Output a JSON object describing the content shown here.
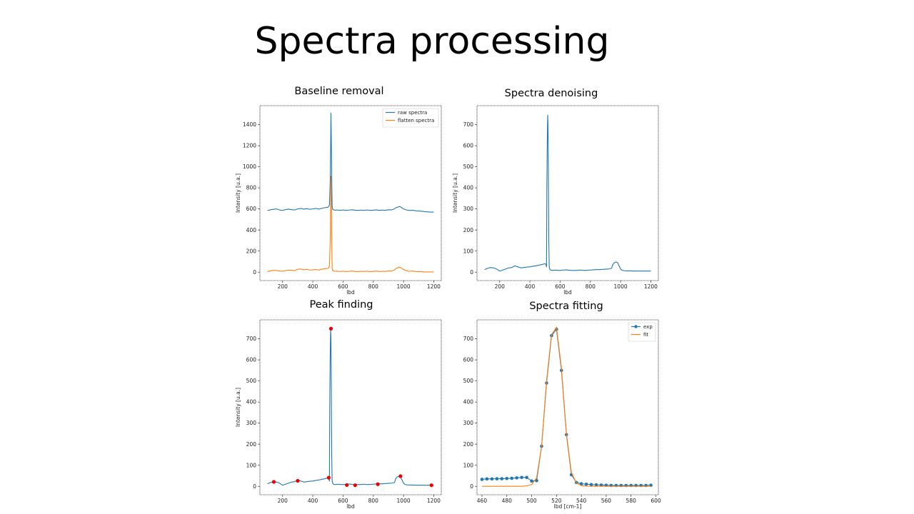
{
  "slide": {
    "title": "Spectra processing"
  },
  "colors": {
    "blue": "#1f77b4",
    "orange": "#ff7f0e",
    "red": "#ee0000",
    "axis": "#333333"
  },
  "chart_data": [
    {
      "id": "baseline",
      "type": "line",
      "title": "Baseline removal",
      "xlabel": "lbd",
      "ylabel": "Intensity [u.a.]",
      "xlim": [
        50,
        1250
      ],
      "ylim": [
        -80,
        1580
      ],
      "xticks": [
        200,
        400,
        600,
        800,
        1000,
        1200
      ],
      "yticks": [
        0,
        200,
        400,
        600,
        800,
        1000,
        1200,
        1400
      ],
      "legend": "top-right",
      "series": [
        {
          "name": "raw spectra",
          "color": "#1f77b4",
          "x": [
            100,
            120,
            140,
            160,
            180,
            200,
            220,
            240,
            260,
            280,
            300,
            320,
            340,
            360,
            380,
            400,
            420,
            440,
            460,
            480,
            500,
            505,
            510,
            515,
            518,
            520,
            522,
            525,
            528,
            532,
            536,
            540,
            550,
            560,
            580,
            600,
            620,
            640,
            660,
            680,
            700,
            720,
            740,
            760,
            780,
            800,
            820,
            840,
            860,
            880,
            900,
            920,
            940,
            950,
            960,
            970,
            980,
            990,
            1000,
            1010,
            1020,
            1040,
            1060,
            1080,
            1100,
            1120,
            1140,
            1160,
            1180,
            1200
          ],
          "y": [
            585,
            592,
            596,
            600,
            590,
            585,
            594,
            598,
            593,
            590,
            600,
            605,
            598,
            602,
            596,
            600,
            605,
            598,
            606,
            612,
            616,
            622,
            640,
            860,
            1200,
            1510,
            1300,
            900,
            620,
            595,
            593,
            590,
            588,
            590,
            587,
            590,
            586,
            589,
            592,
            588,
            586,
            589,
            587,
            590,
            585,
            588,
            591,
            586,
            589,
            587,
            592,
            590,
            600,
            612,
            615,
            622,
            620,
            610,
            600,
            595,
            590,
            585,
            588,
            582,
            580,
            578,
            574,
            572,
            570,
            570
          ]
        },
        {
          "name": "flatten spectra",
          "color": "#ff7f0e",
          "x": [
            100,
            120,
            140,
            160,
            180,
            200,
            220,
            240,
            260,
            280,
            300,
            320,
            340,
            360,
            380,
            400,
            420,
            440,
            460,
            480,
            500,
            505,
            510,
            515,
            518,
            520,
            522,
            525,
            528,
            532,
            536,
            540,
            550,
            560,
            580,
            600,
            620,
            640,
            660,
            680,
            700,
            720,
            740,
            760,
            780,
            800,
            820,
            840,
            860,
            880,
            900,
            920,
            940,
            950,
            960,
            970,
            980,
            990,
            1000,
            1010,
            1020,
            1040,
            1060,
            1080,
            1100,
            1120,
            1140,
            1160,
            1180,
            1200
          ],
          "y": [
            5,
            12,
            18,
            15,
            10,
            8,
            14,
            20,
            18,
            14,
            28,
            30,
            22,
            26,
            20,
            22,
            25,
            20,
            28,
            32,
            36,
            42,
            60,
            300,
            600,
            910,
            700,
            350,
            40,
            15,
            12,
            10,
            8,
            9,
            6,
            9,
            5,
            8,
            10,
            7,
            5,
            8,
            6,
            9,
            4,
            7,
            10,
            5,
            8,
            6,
            11,
            9,
            20,
            35,
            40,
            48,
            45,
            35,
            25,
            18,
            12,
            8,
            10,
            6,
            5,
            4,
            2,
            2,
            2,
            2
          ]
        }
      ]
    },
    {
      "id": "denoising",
      "type": "line",
      "title": "Spectra denoising",
      "xlabel": "lbd",
      "ylabel": "Intensity [u.a.]",
      "xlim": [
        50,
        1250
      ],
      "ylim": [
        -40,
        790
      ],
      "xticks": [
        200,
        400,
        600,
        800,
        1000,
        1200
      ],
      "yticks": [
        0,
        100,
        200,
        300,
        400,
        500,
        600,
        700
      ],
      "series": [
        {
          "name": "",
          "color": "#1f77b4",
          "x": [
            100,
            120,
            140,
            160,
            180,
            200,
            220,
            240,
            260,
            280,
            300,
            320,
            340,
            360,
            380,
            400,
            420,
            440,
            460,
            480,
            500,
            505,
            510,
            512,
            515,
            518,
            520,
            522,
            525,
            528,
            532,
            536,
            540,
            550,
            560,
            580,
            600,
            620,
            640,
            660,
            680,
            700,
            720,
            740,
            760,
            780,
            800,
            820,
            840,
            860,
            880,
            900,
            920,
            940,
            950,
            960,
            970,
            980,
            990,
            1000,
            1010,
            1020,
            1040,
            1060,
            1080,
            1100,
            1120,
            1140,
            1160,
            1180,
            1200
          ],
          "y": [
            12,
            18,
            22,
            20,
            15,
            5,
            10,
            15,
            20,
            22,
            30,
            25,
            20,
            22,
            24,
            25,
            28,
            30,
            33,
            36,
            40,
            38,
            25,
            380,
            620,
            745,
            700,
            500,
            150,
            25,
            14,
            10,
            9,
            8,
            10,
            9,
            8,
            10,
            11,
            9,
            8,
            8,
            9,
            10,
            8,
            9,
            10,
            11,
            12,
            12,
            13,
            14,
            15,
            18,
            38,
            45,
            48,
            45,
            30,
            15,
            9,
            7,
            6,
            6,
            5,
            5,
            5,
            5,
            5,
            5,
            5
          ]
        }
      ]
    },
    {
      "id": "peaks",
      "type": "line",
      "title": "Peak finding",
      "xlabel": "lbd",
      "ylabel": "Intensity [u.a.]",
      "xlim": [
        50,
        1250
      ],
      "ylim": [
        -40,
        790
      ],
      "xticks": [
        200,
        400,
        600,
        800,
        1000,
        1200
      ],
      "yticks": [
        0,
        100,
        200,
        300,
        400,
        500,
        600,
        700
      ],
      "series": [
        {
          "name": "",
          "color": "#1f77b4",
          "x": [
            100,
            120,
            140,
            160,
            180,
            200,
            220,
            240,
            260,
            280,
            300,
            320,
            340,
            360,
            380,
            400,
            420,
            440,
            460,
            480,
            500,
            505,
            510,
            512,
            515,
            518,
            520,
            522,
            525,
            528,
            532,
            536,
            540,
            550,
            560,
            580,
            600,
            620,
            640,
            660,
            680,
            700,
            720,
            740,
            760,
            780,
            800,
            820,
            840,
            860,
            880,
            900,
            920,
            940,
            950,
            960,
            970,
            980,
            990,
            1000,
            1010,
            1020,
            1040,
            1060,
            1080,
            1100,
            1120,
            1140,
            1160,
            1180,
            1200
          ],
          "y": [
            12,
            18,
            22,
            20,
            15,
            5,
            10,
            15,
            20,
            22,
            30,
            25,
            20,
            22,
            24,
            25,
            28,
            30,
            33,
            36,
            40,
            38,
            25,
            380,
            620,
            745,
            700,
            500,
            150,
            25,
            14,
            10,
            9,
            8,
            10,
            9,
            8,
            10,
            11,
            9,
            8,
            8,
            9,
            10,
            8,
            9,
            10,
            11,
            12,
            12,
            13,
            14,
            15,
            18,
            38,
            45,
            48,
            45,
            30,
            15,
            9,
            7,
            6,
            6,
            5,
            5,
            5,
            5,
            5,
            5,
            5
          ]
        }
      ],
      "peaks": {
        "color": "#ee0000",
        "x": [
          142,
          300,
          505,
          520,
          625,
          680,
          830,
          980,
          1185
        ],
        "y": [
          21,
          26,
          41,
          748,
          6,
          5,
          10,
          48,
          5
        ]
      }
    },
    {
      "id": "fitting",
      "type": "line",
      "title": "Spectra fitting",
      "xlabel": "lbd [cm-1]",
      "ylabel": "",
      "xlim": [
        456,
        602
      ],
      "ylim": [
        -40,
        790
      ],
      "xticks": [
        460,
        480,
        500,
        520,
        540,
        560,
        580,
        600
      ],
      "yticks": [
        0,
        100,
        200,
        300,
        400,
        500,
        600,
        700
      ],
      "legend": "top-right",
      "series": [
        {
          "name": "exp",
          "color": "#1f77b4",
          "markers": true,
          "x": [
            460,
            464,
            468,
            472,
            476,
            480,
            484,
            488,
            492,
            496,
            500,
            504,
            508,
            512,
            516,
            520,
            524,
            528,
            532,
            536,
            540,
            544,
            548,
            552,
            556,
            560,
            564,
            568,
            572,
            576,
            580,
            584,
            588,
            592,
            596
          ],
          "y": [
            33,
            35,
            35,
            36,
            36,
            37,
            38,
            40,
            42,
            42,
            25,
            27,
            190,
            490,
            715,
            745,
            550,
            245,
            55,
            18,
            12,
            10,
            8,
            7,
            6,
            5,
            4,
            4,
            4,
            4,
            4,
            4,
            4,
            4,
            5
          ]
        },
        {
          "name": "fit",
          "color": "#ff7f0e",
          "markers": false,
          "x": [
            460,
            464,
            468,
            472,
            476,
            480,
            484,
            488,
            492,
            496,
            500,
            504,
            508,
            512,
            516,
            520,
            524,
            528,
            532,
            536,
            540,
            544,
            548,
            552,
            556,
            560,
            564,
            568,
            572,
            576,
            580,
            584,
            588,
            592,
            596
          ],
          "y": [
            0,
            0,
            0,
            0,
            0,
            0,
            0,
            0,
            0,
            2,
            8,
            40,
            190,
            500,
            720,
            755,
            560,
            250,
            65,
            15,
            3,
            1,
            0,
            0,
            0,
            0,
            0,
            0,
            0,
            0,
            0,
            0,
            0,
            0,
            0
          ]
        }
      ]
    }
  ]
}
